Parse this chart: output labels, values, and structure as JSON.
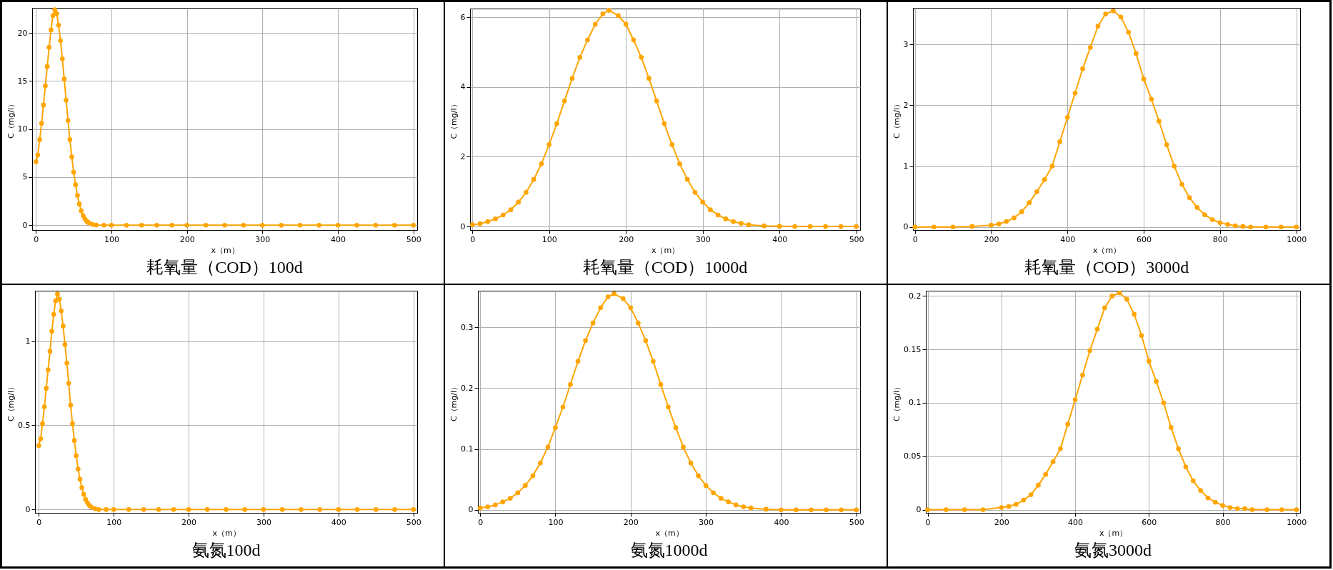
{
  "chart_data": [
    {
      "type": "line",
      "title": "耗氧量（COD）100d",
      "xlabel": "x（m）",
      "ylabel": "C（mg/l）",
      "marker": "circle",
      "grid": true,
      "xlim": [
        -5,
        505
      ],
      "ylim": [
        -0.5,
        22.6
      ],
      "xticks": [
        0,
        100,
        200,
        300,
        400,
        500
      ],
      "yticks": [
        0,
        5,
        10,
        15,
        20
      ],
      "x": [
        0,
        2.5,
        5,
        7.5,
        10,
        12.5,
        15,
        17.5,
        20,
        22.5,
        25,
        27.5,
        30,
        32.5,
        35,
        37.5,
        40,
        42.5,
        45,
        47.5,
        50,
        52.5,
        55,
        57.5,
        60,
        62.5,
        65,
        67.5,
        70,
        75,
        80,
        90,
        100,
        120,
        140,
        160,
        180,
        200,
        225,
        250,
        275,
        300,
        325,
        350,
        375,
        400,
        425,
        450,
        475,
        500
      ],
      "series": [
        {
          "color": "#ffa500",
          "values": [
            6.6,
            7.3,
            8.9,
            10.6,
            12.5,
            14.5,
            16.5,
            18.5,
            20.3,
            21.8,
            22.4,
            22.0,
            20.8,
            19.2,
            17.3,
            15.2,
            13.0,
            10.9,
            8.9,
            7.1,
            5.5,
            4.2,
            3.1,
            2.2,
            1.5,
            1.0,
            0.65,
            0.4,
            0.25,
            0.08,
            0.02,
            0,
            0,
            0,
            0,
            0,
            0,
            0,
            0,
            0,
            0,
            0,
            0,
            0,
            0,
            0,
            0,
            0,
            0,
            0
          ]
        }
      ]
    },
    {
      "type": "line",
      "title": "耗氧量（COD）1000d",
      "xlabel": "x（m）",
      "ylabel": "C（mg/l）",
      "marker": "circle",
      "grid": true,
      "xlim": [
        -3,
        505
      ],
      "ylim": [
        -0.1,
        6.25
      ],
      "xticks": [
        0,
        100,
        200,
        300,
        400,
        500
      ],
      "yticks": [
        0,
        2,
        4,
        6
      ],
      "x": [
        0,
        10,
        20,
        30,
        40,
        50,
        60,
        70,
        80,
        90,
        100,
        110,
        120,
        130,
        140,
        150,
        160,
        170,
        178,
        190,
        200,
        210,
        220,
        230,
        240,
        250,
        260,
        270,
        280,
        290,
        300,
        310,
        320,
        330,
        340,
        350,
        360,
        380,
        400,
        420,
        440,
        460,
        480,
        500
      ],
      "series": [
        {
          "color": "#ffa500",
          "values": [
            0.05,
            0.08,
            0.14,
            0.22,
            0.33,
            0.48,
            0.7,
            0.98,
            1.35,
            1.8,
            2.35,
            2.95,
            3.6,
            4.25,
            4.85,
            5.35,
            5.8,
            6.1,
            6.2,
            6.05,
            5.8,
            5.35,
            4.85,
            4.25,
            3.6,
            2.95,
            2.35,
            1.8,
            1.35,
            0.98,
            0.7,
            0.48,
            0.33,
            0.22,
            0.14,
            0.09,
            0.05,
            0.02,
            0.01,
            0,
            0,
            0,
            0,
            0
          ]
        }
      ]
    },
    {
      "type": "line",
      "title": "耗氧量（COD）3000d",
      "xlabel": "x（m）",
      "ylabel": "C（mg/l）",
      "marker": "circle",
      "grid": true,
      "xlim": [
        -5,
        1010
      ],
      "ylim": [
        -0.05,
        3.6
      ],
      "xticks": [
        0,
        200,
        400,
        600,
        800,
        1000
      ],
      "yticks": [
        0,
        1,
        2,
        3
      ],
      "x": [
        0,
        50,
        100,
        150,
        200,
        220,
        240,
        260,
        280,
        300,
        320,
        340,
        360,
        380,
        400,
        420,
        440,
        460,
        480,
        500,
        520,
        540,
        560,
        580,
        600,
        620,
        640,
        660,
        680,
        700,
        720,
        740,
        760,
        780,
        800,
        820,
        840,
        860,
        880,
        920,
        960,
        1000
      ],
      "series": [
        {
          "color": "#ffa500",
          "values": [
            0,
            0,
            0,
            0.01,
            0.03,
            0.05,
            0.09,
            0.15,
            0.25,
            0.4,
            0.58,
            0.78,
            1.0,
            1.4,
            1.8,
            2.2,
            2.6,
            2.95,
            3.3,
            3.5,
            3.55,
            3.45,
            3.2,
            2.85,
            2.43,
            2.1,
            1.74,
            1.35,
            1.0,
            0.7,
            0.48,
            0.32,
            0.2,
            0.12,
            0.07,
            0.04,
            0.02,
            0.01,
            0,
            0,
            0,
            0
          ]
        }
      ]
    },
    {
      "type": "line",
      "title": "氨氮100d",
      "xlabel": "x（m）",
      "ylabel": "C（mg/l）",
      "marker": "circle",
      "grid": true,
      "xlim": [
        -5,
        505
      ],
      "ylim": [
        -0.02,
        1.3
      ],
      "xticks": [
        0,
        100,
        200,
        300,
        400,
        500
      ],
      "yticks": [
        0,
        0.5,
        1
      ],
      "x": [
        0,
        2.5,
        5,
        7.5,
        10,
        12.5,
        15,
        17.5,
        20,
        22.5,
        25,
        27.5,
        30,
        32.5,
        35,
        37.5,
        40,
        42.5,
        45,
        47.5,
        50,
        52.5,
        55,
        57.5,
        60,
        62.5,
        65,
        67.5,
        70,
        75,
        80,
        90,
        100,
        120,
        140,
        160,
        180,
        200,
        225,
        250,
        275,
        300,
        325,
        350,
        375,
        400,
        425,
        450,
        475,
        500
      ],
      "series": [
        {
          "color": "#ffa500",
          "values": [
            0.38,
            0.42,
            0.51,
            0.61,
            0.72,
            0.83,
            0.94,
            1.06,
            1.16,
            1.24,
            1.28,
            1.25,
            1.18,
            1.09,
            0.98,
            0.87,
            0.75,
            0.62,
            0.51,
            0.41,
            0.32,
            0.24,
            0.18,
            0.13,
            0.09,
            0.06,
            0.04,
            0.025,
            0.015,
            0.005,
            0,
            0,
            0,
            0,
            0,
            0,
            0,
            0,
            0,
            0,
            0,
            0,
            0,
            0,
            0,
            0,
            0,
            0,
            0,
            0
          ]
        }
      ]
    },
    {
      "type": "line",
      "title": "氨氮1000d",
      "xlabel": "x（m）",
      "ylabel": "C（mg/l）",
      "marker": "circle",
      "grid": true,
      "xlim": [
        -3,
        505
      ],
      "ylim": [
        -0.005,
        0.36
      ],
      "xticks": [
        0,
        100,
        200,
        300,
        400,
        500
      ],
      "yticks": [
        0,
        0.1,
        0.2,
        0.3
      ],
      "x": [
        0,
        10,
        20,
        30,
        40,
        50,
        60,
        70,
        80,
        90,
        100,
        110,
        120,
        130,
        140,
        150,
        160,
        170,
        178,
        190,
        200,
        210,
        220,
        230,
        240,
        250,
        260,
        270,
        280,
        290,
        300,
        310,
        320,
        330,
        340,
        350,
        360,
        380,
        400,
        420,
        440,
        460,
        480,
        500
      ],
      "series": [
        {
          "color": "#ffa500",
          "values": [
            0.003,
            0.005,
            0.008,
            0.013,
            0.019,
            0.028,
            0.04,
            0.056,
            0.077,
            0.103,
            0.135,
            0.169,
            0.206,
            0.244,
            0.278,
            0.307,
            0.332,
            0.35,
            0.355,
            0.347,
            0.332,
            0.307,
            0.278,
            0.244,
            0.206,
            0.169,
            0.135,
            0.103,
            0.077,
            0.056,
            0.04,
            0.028,
            0.019,
            0.013,
            0.008,
            0.005,
            0.003,
            0.001,
            0,
            0,
            0,
            0,
            0,
            0
          ]
        }
      ]
    },
    {
      "type": "line",
      "title": "氨氮3000d",
      "xlabel": "x（m）",
      "ylabel": "C（mg/l）",
      "marker": "circle",
      "grid": true,
      "xlim": [
        -5,
        1010
      ],
      "ylim": [
        -0.003,
        0.205
      ],
      "xticks": [
        0,
        200,
        400,
        600,
        800,
        1000
      ],
      "yticks": [
        0,
        0.05,
        0.1,
        0.15,
        0.2
      ],
      "x": [
        0,
        50,
        100,
        150,
        200,
        220,
        240,
        260,
        280,
        300,
        320,
        340,
        360,
        380,
        400,
        420,
        440,
        460,
        480,
        500,
        520,
        540,
        560,
        580,
        600,
        620,
        640,
        660,
        680,
        700,
        720,
        740,
        760,
        780,
        800,
        820,
        840,
        860,
        880,
        920,
        960,
        1000
      ],
      "series": [
        {
          "color": "#ffa500",
          "values": [
            0,
            0,
            0,
            0,
            0.002,
            0.003,
            0.005,
            0.009,
            0.014,
            0.023,
            0.033,
            0.045,
            0.057,
            0.08,
            0.103,
            0.126,
            0.149,
            0.169,
            0.189,
            0.2,
            0.203,
            0.197,
            0.183,
            0.163,
            0.139,
            0.12,
            0.1,
            0.077,
            0.057,
            0.04,
            0.027,
            0.018,
            0.011,
            0.007,
            0.004,
            0.002,
            0.001,
            0.001,
            0,
            0,
            0,
            0
          ]
        }
      ]
    }
  ]
}
